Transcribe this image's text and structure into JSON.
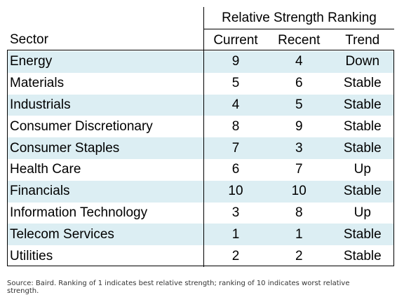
{
  "header": {
    "group_title": "Relative Strength Ranking",
    "sector_label": "Sector",
    "current_label": "Current",
    "recent_label": "Recent",
    "trend_label": "Trend"
  },
  "rows": [
    {
      "sector": "Energy",
      "current": "9",
      "recent": "4",
      "trend": "Down"
    },
    {
      "sector": "Materials",
      "current": "5",
      "recent": "6",
      "trend": "Stable"
    },
    {
      "sector": "Industrials",
      "current": "4",
      "recent": "5",
      "trend": "Stable"
    },
    {
      "sector": "Consumer Discretionary",
      "current": "8",
      "recent": "9",
      "trend": "Stable"
    },
    {
      "sector": "Consumer Staples",
      "current": "7",
      "recent": "3",
      "trend": "Stable"
    },
    {
      "sector": "Health Care",
      "current": "6",
      "recent": "7",
      "trend": "Up"
    },
    {
      "sector": "Financials",
      "current": "10",
      "recent": "10",
      "trend": "Stable"
    },
    {
      "sector": "Information Technology",
      "current": "3",
      "recent": "8",
      "trend": "Up"
    },
    {
      "sector": "Telecom Services",
      "current": "1",
      "recent": "1",
      "trend": "Stable"
    },
    {
      "sector": "Utilities",
      "current": "2",
      "recent": "2",
      "trend": "Stable"
    }
  ],
  "colors": {
    "stripe": "#dceef3",
    "background": "#ffffff"
  },
  "footnote": "Source: Baird. Ranking of 1 indicates best relative strength; ranking of 10 indicates worst relative strength."
}
